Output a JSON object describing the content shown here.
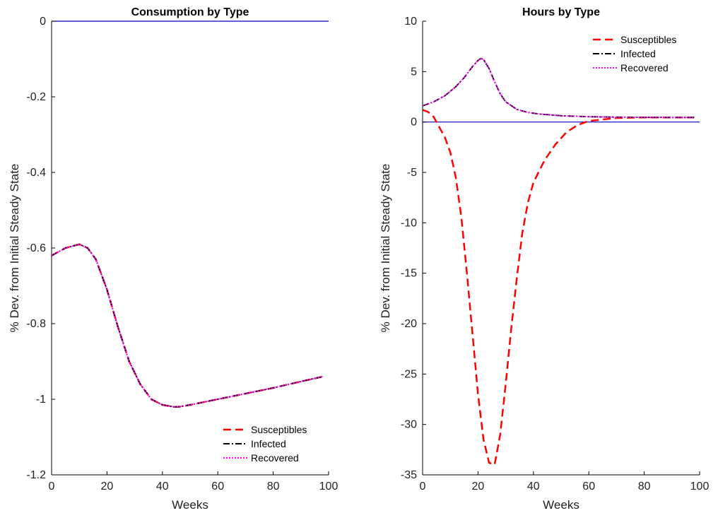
{
  "chart_data": [
    {
      "type": "line",
      "title": "Consumption by Type",
      "xlabel": "Weeks",
      "ylabel": "% Dev. from Initial Steady State",
      "xlim": [
        0,
        100
      ],
      "ylim": [
        -1.2,
        0
      ],
      "xticks": [
        0,
        20,
        40,
        60,
        80,
        100
      ],
      "yticks": [
        -1.2,
        -1,
        -0.8,
        -0.6,
        -0.4,
        -0.2,
        0
      ],
      "ytick_labels": [
        "-1.2",
        "-1",
        "-0.8",
        "-0.6",
        "-0.4",
        "-0.2",
        "0"
      ],
      "grid": false,
      "legend_position": "bottom-right",
      "reference_line": {
        "y": 0,
        "color": "#0000cc"
      },
      "series": [
        {
          "name": "Susceptibles",
          "style": "dashed",
          "color": "#ff0000",
          "x": [
            0,
            5,
            10,
            13,
            16,
            20,
            24,
            28,
            32,
            36,
            40,
            44,
            46,
            50,
            60,
            70,
            80,
            90,
            98
          ],
          "y": [
            -0.62,
            -0.6,
            -0.59,
            -0.6,
            -0.63,
            -0.71,
            -0.81,
            -0.9,
            -0.96,
            -1.0,
            -1.015,
            -1.02,
            -1.02,
            -1.015,
            -1.0,
            -0.985,
            -0.97,
            -0.953,
            -0.94
          ]
        },
        {
          "name": "Infected",
          "style": "dashdot",
          "color": "#000000",
          "x": [
            0,
            5,
            10,
            13,
            16,
            20,
            24,
            28,
            32,
            36,
            40,
            44,
            46,
            50,
            60,
            70,
            80,
            90,
            98
          ],
          "y": [
            -0.62,
            -0.6,
            -0.59,
            -0.6,
            -0.63,
            -0.71,
            -0.81,
            -0.9,
            -0.96,
            -1.0,
            -1.015,
            -1.02,
            -1.02,
            -1.015,
            -1.0,
            -0.985,
            -0.97,
            -0.953,
            -0.94
          ]
        },
        {
          "name": "Recovered",
          "style": "dotted",
          "color": "#ff00ff",
          "x": [
            0,
            5,
            10,
            13,
            16,
            20,
            24,
            28,
            32,
            36,
            40,
            44,
            46,
            50,
            60,
            70,
            80,
            90,
            98
          ],
          "y": [
            -0.62,
            -0.6,
            -0.59,
            -0.6,
            -0.63,
            -0.71,
            -0.81,
            -0.9,
            -0.96,
            -1.0,
            -1.015,
            -1.02,
            -1.02,
            -1.015,
            -1.0,
            -0.985,
            -0.97,
            -0.953,
            -0.94
          ]
        }
      ]
    },
    {
      "type": "line",
      "title": "Hours by Type",
      "xlabel": "Weeks",
      "ylabel": "% Dev. from Initial Steady State",
      "xlim": [
        0,
        100
      ],
      "ylim": [
        -35,
        10
      ],
      "xticks": [
        0,
        20,
        40,
        60,
        80,
        100
      ],
      "yticks": [
        -35,
        -30,
        -25,
        -20,
        -15,
        -10,
        -5,
        0,
        5,
        10
      ],
      "ytick_labels": [
        "-35",
        "-30",
        "-25",
        "-20",
        "-15",
        "-10",
        "-5",
        "0",
        "5",
        "10"
      ],
      "grid": false,
      "legend_position": "top-right",
      "reference_line": {
        "y": 0,
        "color": "#0000cc"
      },
      "series": [
        {
          "name": "Susceptibles",
          "style": "dashed",
          "color": "#ff0000",
          "x": [
            0,
            2,
            4,
            6,
            8,
            10,
            12,
            14,
            16,
            18,
            20,
            22,
            24,
            26,
            28,
            30,
            32,
            34,
            36,
            38,
            40,
            44,
            48,
            52,
            56,
            60,
            70,
            80,
            90,
            98
          ],
          "y": [
            1.2,
            1.0,
            0.5,
            -0.5,
            -1.5,
            -3.0,
            -5.5,
            -9.5,
            -15,
            -21,
            -27,
            -31.5,
            -33.8,
            -34,
            -31,
            -26,
            -20.5,
            -15.5,
            -11,
            -8,
            -6,
            -3.8,
            -2.2,
            -1.0,
            -0.3,
            0.1,
            0.4,
            0.45,
            0.45,
            0.45
          ]
        },
        {
          "name": "Infected",
          "style": "dashdot",
          "color": "#000000",
          "x": [
            0,
            4,
            8,
            12,
            15,
            18,
            20,
            21,
            22,
            24,
            26,
            28,
            30,
            34,
            38,
            42,
            50,
            60,
            70,
            80,
            90,
            98
          ],
          "y": [
            1.6,
            2.0,
            2.6,
            3.5,
            4.4,
            5.5,
            6.1,
            6.3,
            6.2,
            5.3,
            4.0,
            2.8,
            2.0,
            1.25,
            0.95,
            0.8,
            0.62,
            0.52,
            0.48,
            0.46,
            0.45,
            0.45
          ]
        },
        {
          "name": "Recovered",
          "style": "dotted",
          "color": "#ff00ff",
          "x": [
            0,
            4,
            8,
            12,
            15,
            18,
            20,
            21,
            22,
            24,
            26,
            28,
            30,
            34,
            38,
            42,
            50,
            60,
            70,
            80,
            90,
            98
          ],
          "y": [
            1.6,
            2.0,
            2.6,
            3.5,
            4.4,
            5.5,
            6.1,
            6.3,
            6.2,
            5.3,
            4.0,
            2.8,
            2.0,
            1.25,
            0.95,
            0.8,
            0.62,
            0.52,
            0.48,
            0.46,
            0.45,
            0.45
          ]
        }
      ]
    }
  ]
}
